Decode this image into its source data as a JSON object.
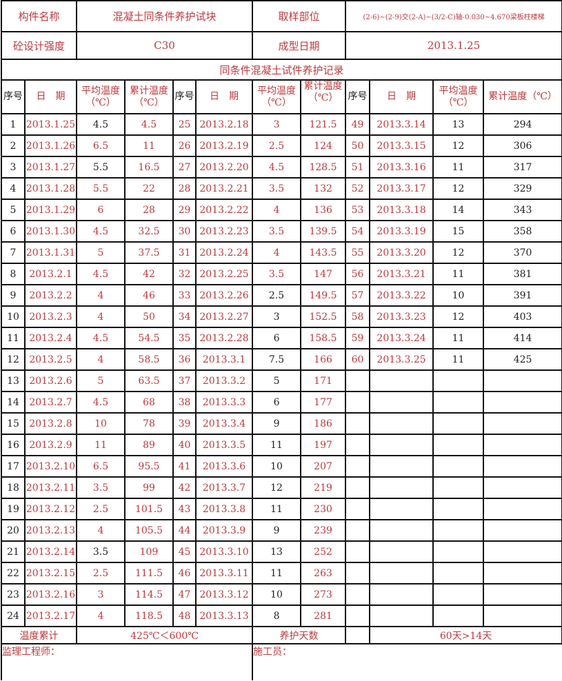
{
  "header": {
    "component_label": "构件名称",
    "component_value": "混凝土同条件养护试块",
    "location_label": "取样部位",
    "location_value": "(2-6)~(2-9)交(2-A)~(3/2-C)轴-0.030~4.670梁板柱楼梯",
    "strength_label": "砼设计强度",
    "strength_value": "C30",
    "cast_date_label": "成型日期",
    "cast_date_value": "2013.1.25"
  },
  "title": "同条件混凝土试件养护记录",
  "columns": {
    "seq": "序号",
    "date": "日　期",
    "avg_temp": "平均温度（℃）",
    "cum_temp": "累计温度（℃）",
    "cum_temp_narrow": "累计温度（℃）"
  },
  "rows": [
    [
      "1",
      "2013.1.25",
      "4.5",
      "4.5",
      "25",
      "2013.2.18",
      "3",
      "121.5",
      "49",
      "2013.3.14",
      "13",
      "294"
    ],
    [
      "2",
      "2013.1.26",
      "6.5",
      "11",
      "26",
      "2013.2.19",
      "2.5",
      "124",
      "50",
      "2013.3.15",
      "12",
      "306"
    ],
    [
      "3",
      "2013.1.27",
      "5.5",
      "16.5",
      "27",
      "2013.2.20",
      "4.5",
      "128.5",
      "51",
      "2013.3.16",
      "11",
      "317"
    ],
    [
      "4",
      "2013.1.28",
      "5.5",
      "22",
      "28",
      "2013.2.21",
      "3.5",
      "132",
      "52",
      "2013.3.17",
      "12",
      "329"
    ],
    [
      "5",
      "2013.1.29",
      "6",
      "28",
      "29",
      "2013.2.22",
      "4",
      "136",
      "53",
      "2013.3.18",
      "14",
      "343"
    ],
    [
      "6",
      "2013.1.30",
      "4.5",
      "32.5",
      "30",
      "2013.2.23",
      "3.5",
      "139.5",
      "54",
      "2013.3.19",
      "15",
      "358"
    ],
    [
      "7",
      "2013.1.31",
      "5",
      "37.5",
      "31",
      "2013.2.24",
      "4",
      "143.5",
      "55",
      "2013.3.20",
      "12",
      "370"
    ],
    [
      "8",
      "2013.2.1",
      "4.5",
      "42",
      "32",
      "2013.2.25",
      "3.5",
      "147",
      "56",
      "2013.3.21",
      "11",
      "381"
    ],
    [
      "9",
      "2013.2.2",
      "4",
      "46",
      "33",
      "2013.2.26",
      "2.5",
      "149.5",
      "57",
      "2013.3.22",
      "10",
      "391"
    ],
    [
      "10",
      "2013.2.3",
      "4",
      "50",
      "34",
      "2013.2.27",
      "3",
      "152.5",
      "58",
      "2013.3.23",
      "12",
      "403"
    ],
    [
      "11",
      "2013.2.4",
      "4.5",
      "54.5",
      "35",
      "2013.2.28",
      "6",
      "158.5",
      "59",
      "2013.3.24",
      "11",
      "414"
    ],
    [
      "12",
      "2013.2.5",
      "4",
      "58.5",
      "36",
      "2013.3.1",
      "7.5",
      "166",
      "60",
      "2013.3.25",
      "11",
      "425"
    ],
    [
      "13",
      "2013.2.6",
      "5",
      "63.5",
      "37",
      "2013.3.2",
      "5",
      "171",
      "",
      "",
      "",
      ""
    ],
    [
      "14",
      "2013.2.7",
      "4.5",
      "68",
      "38",
      "2013.3.3",
      "6",
      "177",
      "",
      "",
      "",
      ""
    ],
    [
      "15",
      "2013.2.8",
      "10",
      "78",
      "39",
      "2013.3.4",
      "9",
      "186",
      "",
      "",
      "",
      ""
    ],
    [
      "16",
      "2013.2.9",
      "11",
      "89",
      "40",
      "2013.3.5",
      "11",
      "197",
      "",
      "",
      "",
      ""
    ],
    [
      "17",
      "2013.2.10",
      "6.5",
      "95.5",
      "41",
      "2013.3.6",
      "10",
      "207",
      "",
      "",
      "",
      ""
    ],
    [
      "18",
      "2013.2.11",
      "3.5",
      "99",
      "42",
      "2013.3.7",
      "12",
      "219",
      "",
      "",
      "",
      ""
    ],
    [
      "19",
      "2013.2.12",
      "2.5",
      "101.5",
      "43",
      "2013.3.8",
      "11",
      "230",
      "",
      "",
      "",
      ""
    ],
    [
      "20",
      "2013.2.13",
      "4",
      "105.5",
      "44",
      "2013.3.9",
      "9",
      "239",
      "",
      "",
      "",
      ""
    ],
    [
      "21",
      "2013.2.14",
      "3.5",
      "109",
      "45",
      "2013.3.10",
      "13",
      "252",
      "",
      "",
      "",
      ""
    ],
    [
      "22",
      "2013.2.15",
      "2.5",
      "111.5",
      "46",
      "2013.3.11",
      "11",
      "263",
      "",
      "",
      "",
      ""
    ],
    [
      "23",
      "2013.2.16",
      "3",
      "114.5",
      "47",
      "2013.3.12",
      "10",
      "273",
      "",
      "",
      "",
      ""
    ],
    [
      "24",
      "2013.2.17",
      "4",
      "118.5",
      "48",
      "2013.3.13",
      "8",
      "281",
      "",
      "",
      "",
      ""
    ]
  ],
  "footer": {
    "temp_total_label": "温度累计",
    "temp_total_value": "425℃＜600℃",
    "curing_days_label": "养护天数",
    "curing_days_value": "60天>14天",
    "supervisor_label": "监理工程师：",
    "constructor_label": "施工员："
  },
  "colors": {
    "text_red": "#c0393b",
    "text_black": "#222222",
    "border": "#111111"
  }
}
